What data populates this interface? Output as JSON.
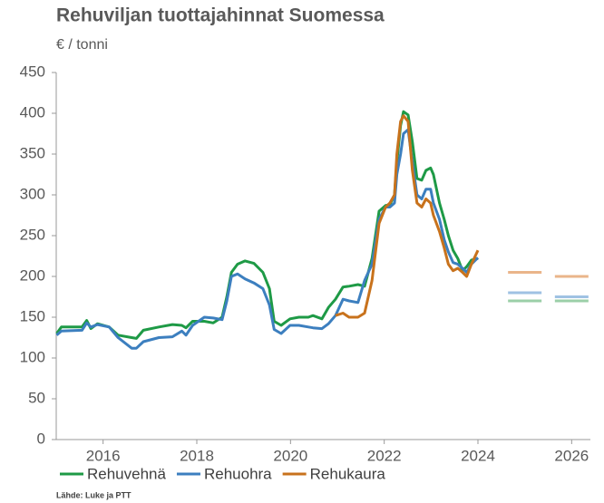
{
  "chart_data": {
    "type": "line",
    "title": "Rehuviljan tuottajahinnat Suomessa",
    "subtitle": "€ / tonni",
    "source": "Lähde: Luke ja PTT",
    "x": [
      2015.01,
      2015.11,
      2015.55,
      2015.65,
      2015.74,
      2015.88,
      2016.13,
      2016.32,
      2016.61,
      2016.71,
      2016.86,
      2017.19,
      2017.48,
      2017.68,
      2017.77,
      2017.91,
      2018.16,
      2018.35,
      2018.54,
      2018.64,
      2018.74,
      2018.87,
      2019.03,
      2019.22,
      2019.41,
      2019.55,
      2019.65,
      2019.8,
      2019.99,
      2020.18,
      2020.38,
      2020.48,
      2020.67,
      2020.81,
      2020.96,
      2021.12,
      2021.25,
      2021.44,
      2021.58,
      2021.74,
      2021.89,
      2022.03,
      2022.12,
      2022.22,
      2022.27,
      2022.35,
      2022.41,
      2022.51,
      2022.6,
      2022.7,
      2022.8,
      2022.89,
      2022.99,
      2023.05,
      2023.18,
      2023.28,
      2023.37,
      2023.47,
      2023.57,
      2023.67,
      2023.76,
      2023.86,
      2024.0
    ],
    "series": [
      {
        "name": "Rehuvehnä",
        "color": "#1e9a46",
        "values": [
          130,
          138,
          138,
          146,
          136,
          142,
          138,
          128,
          125,
          124,
          134,
          138,
          141,
          140,
          137,
          145,
          145,
          143,
          150,
          175,
          205,
          215,
          219,
          216,
          205,
          185,
          145,
          140,
          148,
          150,
          150,
          152,
          148,
          162,
          172,
          187,
          188,
          190,
          188,
          222,
          280,
          287,
          288,
          300,
          340,
          385,
          402,
          398,
          365,
          320,
          318,
          330,
          333,
          325,
          290,
          270,
          250,
          232,
          222,
          207,
          212,
          220,
          222
        ]
      },
      {
        "name": "Rehuohra",
        "color": "#3c7fbf",
        "values": [
          128,
          133,
          134,
          143,
          138,
          141,
          138,
          125,
          112,
          112,
          120,
          125,
          126,
          133,
          128,
          140,
          150,
          149,
          147,
          170,
          200,
          203,
          197,
          192,
          185,
          165,
          135,
          130,
          140,
          140,
          138,
          137,
          136,
          142,
          152,
          172,
          170,
          168,
          195,
          215,
          270,
          285,
          285,
          290,
          325,
          350,
          375,
          380,
          340,
          300,
          295,
          307,
          307,
          290,
          270,
          245,
          230,
          217,
          215,
          210,
          205,
          215,
          223
        ]
      },
      {
        "name": "Rehukaura",
        "color": "#c8721c",
        "values": [
          null,
          null,
          null,
          null,
          null,
          null,
          null,
          null,
          null,
          null,
          null,
          null,
          null,
          null,
          null,
          null,
          null,
          null,
          null,
          null,
          null,
          null,
          null,
          null,
          null,
          null,
          null,
          null,
          null,
          null,
          null,
          null,
          null,
          null,
          152,
          155,
          150,
          150,
          155,
          195,
          265,
          285,
          290,
          300,
          350,
          390,
          397,
          390,
          330,
          290,
          285,
          295,
          290,
          275,
          255,
          235,
          215,
          207,
          210,
          205,
          200,
          215,
          232
        ]
      }
    ],
    "forecast_x": [
      2025,
      2026
    ],
    "forecast_series": [
      {
        "color": "#9bcfa8",
        "values": [
          170,
          170
        ]
      },
      {
        "color": "#9fc2e3",
        "values": [
          180,
          175
        ]
      },
      {
        "color": "#eab58a",
        "values": [
          205,
          200
        ]
      }
    ],
    "xlim": [
      2015,
      2026.4
    ],
    "xticks": [
      2016,
      2018,
      2020,
      2022,
      2024,
      2026
    ],
    "ylim": [
      0,
      450
    ],
    "yticks": [
      0,
      50,
      100,
      150,
      200,
      250,
      300,
      350,
      400,
      450
    ],
    "grid": false
  }
}
